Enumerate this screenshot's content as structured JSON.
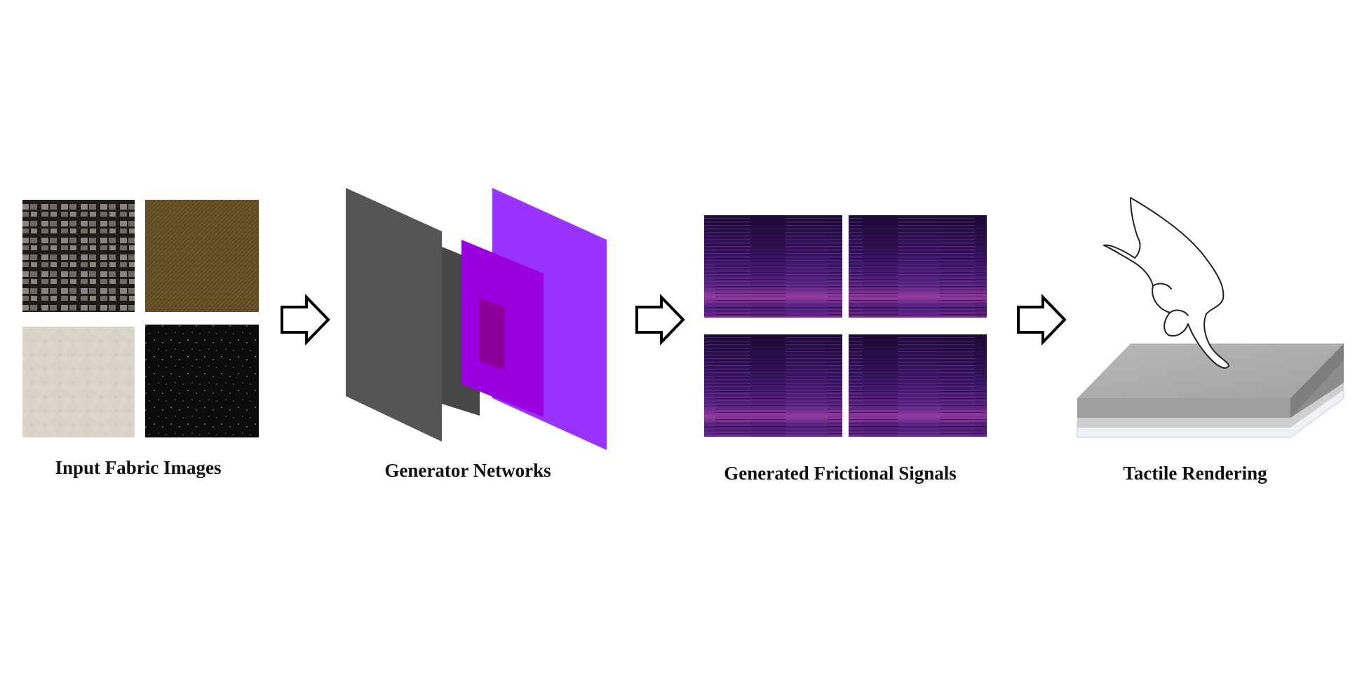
{
  "stages": [
    {
      "label": "Input Fabric Images"
    },
    {
      "label": "Generator Networks"
    },
    {
      "label": "Generated Frictional Signals"
    },
    {
      "label": "Tactile Rendering"
    }
  ],
  "colors": {
    "arrow": "#000000",
    "layer_gray_dark": "#4a4a4a",
    "layer_gray": "#555555",
    "layer_purple_light": "#9a33ff",
    "layer_purple": "#9b00e6",
    "layer_purple_core": "#8a0099",
    "spectrogram_base": "#2a0a4a",
    "spectrogram_highlight": "#c04ab0",
    "device_top": "#b0b0b0",
    "device_side": "#8c8c8c"
  },
  "icons": [
    "arrow-right-outline-icon",
    "hand-pointing-icon",
    "tactile-device-icon"
  ]
}
